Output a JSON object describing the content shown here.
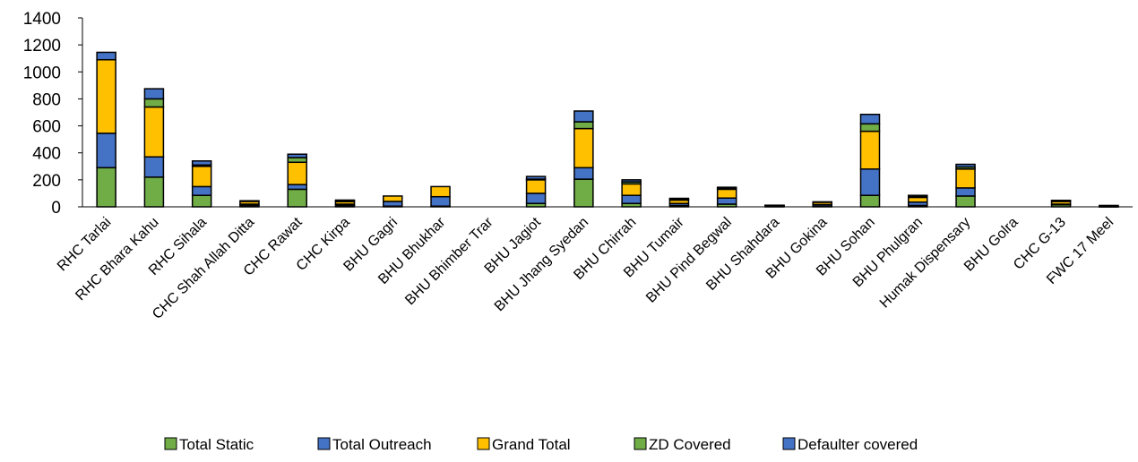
{
  "chart_data": {
    "type": "bar",
    "stacked": true,
    "title": "",
    "xlabel": "",
    "ylabel": "",
    "ylim": [
      0,
      1400
    ],
    "yticks": [
      0,
      200,
      400,
      600,
      800,
      1000,
      1200,
      1400
    ],
    "grid": false,
    "legend_position": "bottom",
    "categories": [
      "RHC Tarlai",
      "RHC Bhara Kahu",
      "RHC Sihala",
      "CHC Shah Allah Ditta",
      "CHC Rawat",
      "CHC Kirpa",
      "BHU Gagri",
      "BHU Bhukhar",
      "BHU Bhimber Trar",
      "BHU Jagiot",
      "BHU Jhang Syedan",
      "BHU Chirrah",
      "BHU Tumair",
      "BHU Pind Begwal",
      "BHU Shahdara",
      "BHU Gokina",
      "BHU Sohan",
      "BHU Phulgran",
      "Humak Dispensary",
      "BHU Golra",
      "CHC G-13",
      "FWC 17 Meel"
    ],
    "series": [
      {
        "name": "Total Static",
        "color": "#70AD47",
        "values": [
          290,
          220,
          85,
          10,
          130,
          10,
          5,
          5,
          0,
          25,
          205,
          25,
          10,
          20,
          3,
          5,
          85,
          10,
          80,
          0,
          15,
          2
        ]
      },
      {
        "name": "Total Outreach",
        "color": "#4472C4",
        "values": [
          255,
          150,
          65,
          10,
          35,
          10,
          35,
          70,
          0,
          75,
          85,
          60,
          15,
          45,
          2,
          12,
          195,
          25,
          60,
          0,
          5,
          2
        ]
      },
      {
        "name": "Grand Total",
        "color": "#FFC000",
        "values": [
          545,
          370,
          150,
          20,
          165,
          20,
          40,
          75,
          0,
          100,
          290,
          85,
          25,
          65,
          5,
          17,
          280,
          35,
          140,
          0,
          20,
          4
        ]
      },
      {
        "name": "ZD Covered",
        "color": "#70AD47",
        "values": [
          0,
          60,
          10,
          0,
          35,
          2,
          0,
          0,
          0,
          5,
          50,
          15,
          5,
          5,
          1,
          0,
          55,
          5,
          15,
          0,
          3,
          1
        ]
      },
      {
        "name": "Defaulter covered",
        "color": "#4472C4",
        "values": [
          55,
          75,
          30,
          5,
          25,
          8,
          0,
          0,
          0,
          20,
          80,
          15,
          8,
          10,
          1,
          3,
          70,
          10,
          20,
          0,
          5,
          1
        ]
      }
    ]
  }
}
